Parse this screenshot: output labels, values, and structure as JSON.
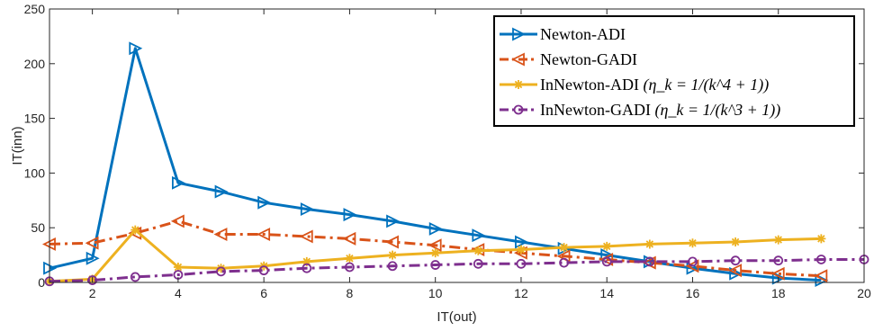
{
  "chart_data": {
    "type": "line",
    "xlabel": "IT(out)",
    "ylabel": "IT(inn)",
    "xlim": [
      1,
      20
    ],
    "ylim": [
      0,
      250
    ],
    "xticks": [
      2,
      4,
      6,
      8,
      10,
      12,
      14,
      16,
      18,
      20
    ],
    "yticks": [
      0,
      50,
      100,
      150,
      200,
      250
    ],
    "grid": false,
    "legend_position": "top-right",
    "series": [
      {
        "name": "Newton-ADI",
        "color": "#0072BD",
        "line_style": "solid",
        "marker": "triangle-right",
        "x": [
          1,
          2,
          3,
          4,
          5,
          6,
          7,
          8,
          9,
          10,
          11,
          12,
          13,
          14,
          15,
          16,
          17,
          18,
          19
        ],
        "y": [
          13,
          22,
          214,
          91,
          83,
          73,
          67,
          62,
          56,
          49,
          43,
          37,
          31,
          25,
          19,
          13,
          8,
          4,
          2
        ]
      },
      {
        "name": "Newton-GADI",
        "color": "#D95319",
        "line_style": "dashdot",
        "marker": "triangle-left",
        "x": [
          1,
          2,
          3,
          4,
          5,
          6,
          7,
          8,
          9,
          10,
          11,
          12,
          13,
          14,
          15,
          16,
          17,
          18,
          19
        ],
        "y": [
          35,
          36,
          45,
          56,
          44,
          44,
          42,
          40,
          37,
          34,
          30,
          27,
          24,
          21,
          18,
          15,
          11,
          8,
          6
        ]
      },
      {
        "name": "InNewton-ADI (η_k = 1/(k^4 + 1))",
        "color": "#EDB120",
        "line_style": "solid",
        "marker": "star",
        "x": [
          1,
          2,
          3,
          4,
          5,
          6,
          7,
          8,
          9,
          10,
          11,
          12,
          13,
          14,
          15,
          16,
          17,
          18,
          19
        ],
        "y": [
          1,
          3,
          48,
          14,
          13,
          15,
          19,
          22,
          25,
          27,
          29,
          30,
          32,
          33,
          35,
          36,
          37,
          39,
          40
        ]
      },
      {
        "name": "InNewton-GADI (η_k = 1/(k^3 + 1))",
        "color": "#7E2F8E",
        "line_style": "dashdot",
        "marker": "circle",
        "x": [
          1,
          2,
          3,
          4,
          5,
          6,
          7,
          8,
          9,
          10,
          11,
          12,
          13,
          14,
          15,
          16,
          17,
          18,
          19,
          20
        ],
        "y": [
          1,
          2,
          5,
          7,
          10,
          11,
          13,
          14,
          15,
          16,
          17,
          17,
          18,
          19,
          19,
          19,
          20,
          20,
          21,
          21
        ]
      }
    ]
  },
  "legend": {
    "items": [
      {
        "main": "Newton-ADI",
        "math": ""
      },
      {
        "main": "Newton-GADI",
        "math": ""
      },
      {
        "main": "InNewton-ADI ",
        "math": "(η_k = 1/(k^4 + 1))"
      },
      {
        "main": "InNewton-GADI ",
        "math": "(η_k = 1/(k^3 + 1))"
      }
    ]
  }
}
